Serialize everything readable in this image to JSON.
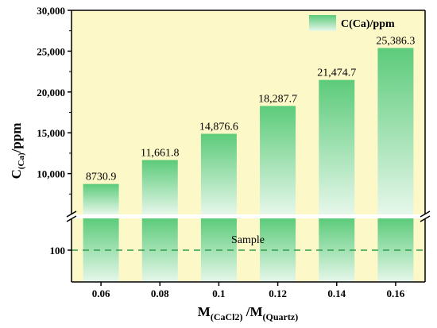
{
  "chart_data": {
    "type": "bar",
    "categories": [
      "0.06",
      "0.08",
      "0.1",
      "0.12",
      "0.14",
      "0.16"
    ],
    "series": [
      {
        "name": "C(Ca)/ppm",
        "values": [
          8730.9,
          11661.8,
          14876.6,
          18287.7,
          21474.7,
          25386.3
        ]
      }
    ],
    "data_labels": [
      "8730.9",
      "11,661.8",
      "14,876.6",
      "18,287.7",
      "21,474.7",
      "25,386.3"
    ],
    "ylabel_main": "C",
    "ylabel_sub": "(Ca)",
    "ylabel_suffix": "/ppm",
    "xlabel_main_1": "M",
    "xlabel_sub_1": "(CaCl2)",
    "xlabel_mid": " /M",
    "xlabel_sub_2": "(Quartz)",
    "y_ticks_upper": [
      "10,000",
      "15,000",
      "20,000",
      "25,000",
      "30,000"
    ],
    "y_tick_values_upper": [
      10000,
      15000,
      20000,
      25000,
      30000
    ],
    "y_ticks_lower": [
      "100"
    ],
    "ylim_upper": [
      5000,
      30000
    ],
    "ylim_lower": [
      0,
      200
    ],
    "reference_line": {
      "value": 100,
      "label": "Sample",
      "style": "dashed",
      "color": "#2e9e4f"
    },
    "legend": {
      "position": "top-right",
      "label": "C(Ca)/ppm"
    },
    "axis_break": true,
    "grid": false,
    "colors": {
      "plot_background": "#fdf8c8",
      "bar_top": "#5ccb7a",
      "bar_bottom": "#e6f7ea",
      "reference_line": "#2e9e4f"
    }
  }
}
